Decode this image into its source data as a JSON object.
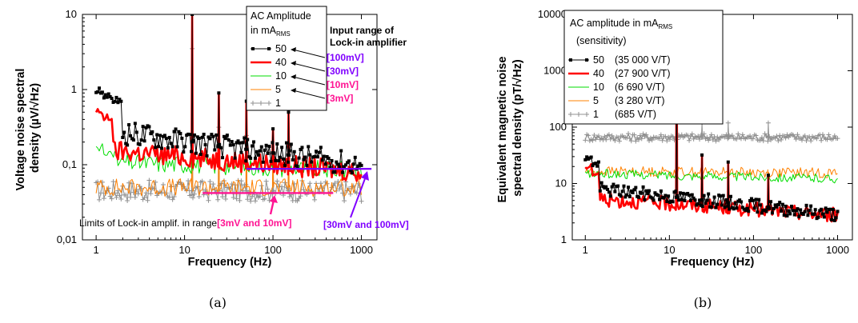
{
  "chart_data": [
    {
      "id": "a",
      "type": "line",
      "caption": "(a)",
      "xlabel": "Frequency (Hz)",
      "ylabel_lines": [
        "Voltage noise spectral",
        "density (µV/√Hz)"
      ],
      "xscale": "log",
      "yscale": "log",
      "xlim": [
        0.7,
        1500
      ],
      "ylim": [
        0.01,
        10
      ],
      "xticks": [
        {
          "v": 1,
          "label": "1"
        },
        {
          "v": 10,
          "label": "10"
        },
        {
          "v": 100,
          "label": "100"
        },
        {
          "v": 1000,
          "label": "1000"
        }
      ],
      "yticks": [
        {
          "v": 0.01,
          "label": "0,01"
        },
        {
          "v": 0.1,
          "label": "0,1"
        },
        {
          "v": 1,
          "label": "1"
        },
        {
          "v": 10,
          "label": "10"
        }
      ],
      "legend_title_lines": [
        "AC Amplitude",
        "in mA"
      ],
      "legend_title_sub": "RMS",
      "legend_position": "top-right",
      "series": [
        {
          "name": "50",
          "color": "#000000",
          "marker": "square",
          "width": 1,
          "level": 0.3,
          "slope": -0.16,
          "noise": 0.16,
          "high_start": [
            [
              1,
              0.95
            ],
            [
              1.3,
              0.85
            ],
            [
              1.6,
              0.7
            ]
          ]
        },
        {
          "name": "40",
          "color": "#ff0000",
          "marker": "none",
          "width": 2.6,
          "level": 0.16,
          "slope": -0.1,
          "noise": 0.14,
          "high_start": [
            [
              1,
              0.5
            ],
            [
              1.3,
              0.42
            ]
          ]
        },
        {
          "name": "10",
          "color": "#00dd00",
          "marker": "none",
          "width": 1,
          "level": 0.11,
          "slope": -0.04,
          "noise": 0.12,
          "high_start": [
            [
              1,
              0.17
            ],
            [
              1.4,
              0.14
            ]
          ]
        },
        {
          "name": "5",
          "color": "#ff8000",
          "marker": "none",
          "width": 1,
          "level": 0.05,
          "slope": 0.0,
          "noise": 0.12
        },
        {
          "name": "1",
          "color": "#909090",
          "marker": "plus",
          "width": 1,
          "level": 0.045,
          "slope": 0.0,
          "noise": 0.14
        }
      ],
      "peaks": [
        {
          "f": 12.2,
          "v": 10
        },
        {
          "f": 24.4,
          "v": 0.9
        },
        {
          "f": 50,
          "v": 0.7
        },
        {
          "f": 100,
          "v": 0.3
        },
        {
          "f": 150,
          "v": 0.5
        }
      ],
      "input_range_title_lines": [
        "Input range of",
        "Lock-in amplifier"
      ],
      "input_ranges": [
        {
          "label": "[100mV]",
          "color": "#8000ff"
        },
        {
          "label": "[30mV]",
          "color": "#8000ff"
        },
        {
          "label": "[10mV]",
          "color": "#ff1493"
        },
        {
          "label": "[3mV]",
          "color": "#ff1493"
        }
      ],
      "limit_lines": [
        {
          "f_from": 50,
          "f_to": 1300,
          "v": 0.088,
          "color": "#8000ff"
        },
        {
          "f_from": 16,
          "f_to": 480,
          "v": 0.042,
          "color": "#ff1493"
        }
      ],
      "limits_label": "Limits of Lock-in amplif. in range",
      "limits_range_1": "[3mV and 10mV]",
      "limits_range_2": "[30mV and 100mV]",
      "limits_range_1_color": "#ff1493",
      "limits_range_2_color": "#8000ff"
    },
    {
      "id": "b",
      "type": "line",
      "caption": "(b)",
      "xlabel": "Frequency (Hz)",
      "ylabel_lines": [
        "Equivalent magnetic noise",
        "spectral density (pT/√Hz)"
      ],
      "xscale": "log",
      "yscale": "log",
      "xlim": [
        0.7,
        1500
      ],
      "ylim": [
        1,
        10000
      ],
      "xticks": [
        {
          "v": 1,
          "label": "1"
        },
        {
          "v": 10,
          "label": "10"
        },
        {
          "v": 100,
          "label": "100"
        },
        {
          "v": 1000,
          "label": "1000"
        }
      ],
      "yticks": [
        {
          "v": 1,
          "label": "1"
        },
        {
          "v": 10,
          "label": "10"
        },
        {
          "v": 100,
          "label": "100"
        },
        {
          "v": 1000,
          "label": "1000"
        },
        {
          "v": 10000,
          "label": "10000"
        }
      ],
      "legend_title_line1": "AC amplitude in mA",
      "legend_title_sub": "RMS",
      "legend_title_line2": "(sensitivity)",
      "legend_position": "top-right",
      "series": [
        {
          "name": "50",
          "sensitivity": "(35 000 V/T)",
          "color": "#000000",
          "marker": "square",
          "width": 1,
          "level": 8.5,
          "slope": -0.16,
          "noise": 0.12,
          "high_start": [
            [
              1,
              28
            ],
            [
              1.2,
              22
            ]
          ]
        },
        {
          "name": "40",
          "sensitivity": "(27 900 V/T)",
          "color": "#ff0000",
          "marker": "none",
          "width": 2.6,
          "level": 5.5,
          "slope": -0.1,
          "noise": 0.13,
          "high_start": [
            [
              1,
              20
            ],
            [
              1.2,
              15
            ]
          ]
        },
        {
          "name": "10",
          "sensitivity": "(6 690 V/T)",
          "color": "#00dd00",
          "marker": "none",
          "width": 1,
          "level": 15,
          "slope": -0.03,
          "noise": 0.08
        },
        {
          "name": "5",
          "sensitivity": "(3 280 V/T)",
          "color": "#ff8000",
          "marker": "none",
          "width": 1,
          "level": 16.5,
          "slope": -0.01,
          "noise": 0.09
        },
        {
          "name": "1",
          "sensitivity": "(685 V/T)",
          "color": "#909090",
          "marker": "plus",
          "width": 1,
          "level": 66,
          "slope": 0.0,
          "noise": 0.07
        }
      ],
      "peaks": [
        {
          "f": 12.2,
          "v": 5200
        },
        {
          "f": 24.4,
          "v": 32
        },
        {
          "f": 50,
          "v": 24
        },
        {
          "f": 150,
          "v": 14
        }
      ]
    }
  ]
}
